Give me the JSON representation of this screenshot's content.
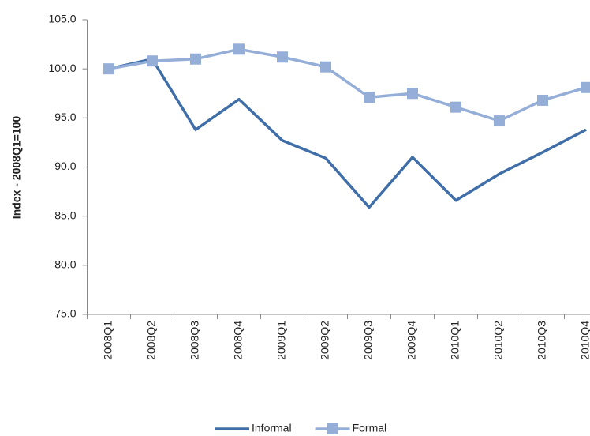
{
  "chart_data": {
    "type": "line",
    "y_label": "Index - 2008Q1=100",
    "categories": [
      "2008Q1",
      "2008Q2",
      "2008Q3",
      "2008Q4",
      "2009Q1",
      "2009Q2",
      "2009Q3",
      "2009Q4",
      "2010Q1",
      "2010Q2",
      "2010Q3",
      "2010Q4"
    ],
    "series": [
      {
        "name": "Informal",
        "color": "#3f6ea8",
        "marker": "none",
        "values": [
          100.0,
          101.0,
          93.8,
          96.9,
          92.7,
          90.9,
          85.9,
          91.0,
          86.6,
          89.3,
          91.5,
          93.8
        ]
      },
      {
        "name": "Formal",
        "color": "#95aed8",
        "marker": "square",
        "values": [
          100.0,
          100.8,
          101.0,
          102.0,
          101.2,
          100.2,
          97.1,
          97.5,
          96.1,
          94.7,
          96.8,
          98.1
        ]
      }
    ],
    "ylim": [
      75,
      105
    ],
    "yticks": [
      {
        "value": 75,
        "label": "75.0"
      },
      {
        "value": 80,
        "label": "80.0"
      },
      {
        "value": 85,
        "label": "85.0"
      },
      {
        "value": 90,
        "label": "90.0"
      },
      {
        "value": 95,
        "label": "95.0"
      },
      {
        "value": 100,
        "label": "100.0"
      },
      {
        "value": 105,
        "label": "105.0"
      }
    ],
    "grid": false,
    "legend": "bottom"
  }
}
